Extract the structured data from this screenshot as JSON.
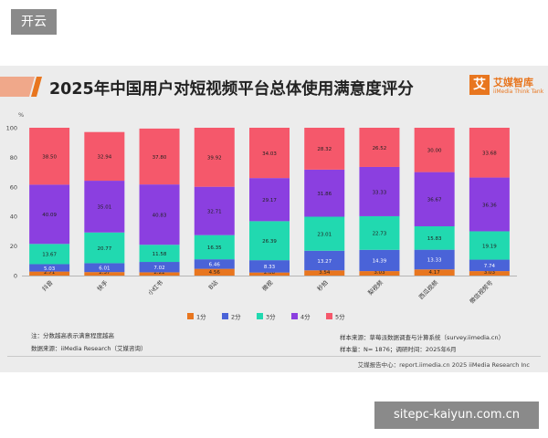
{
  "badge": "开云",
  "watermark": "sitepc-kaiyun.com.cn",
  "logo": {
    "mark": "艾",
    "name": "艾媒智库",
    "sub": "iiMedia Think Tank"
  },
  "notes": {
    "note1": "注：分数越高表示满意程度越高",
    "source": "数据来源：iiMedia Research（艾媒咨询）",
    "sample_source": "样本来源：草莓派数据调查与计算系统（survey.iimedia.cn）",
    "sample_size": "样本量：N= 1876；调研时间：2025年6月"
  },
  "footer": "艾媒报告中心：report.iimedia.cn   2025 iiMedia Research Inc",
  "colors": {
    "s1": "#e8761f",
    "s2": "#4a63d8",
    "s3": "#21d9b0",
    "s4": "#8b3fe0",
    "s5": "#f5586b"
  },
  "chart_data": {
    "type": "bar",
    "stacked": true,
    "title": "2025年中国用户对短视频平台总体使用满意度评分",
    "ylabel": "%",
    "ylim": [
      0,
      100
    ],
    "yticks": [
      0,
      20,
      40,
      60,
      80,
      100
    ],
    "categories": [
      "抖音",
      "快手",
      "小红书",
      "B站",
      "微视",
      "秒拍",
      "梨视频",
      "西瓜视频",
      "微信视频号"
    ],
    "series": [
      {
        "name": "1分",
        "values": [
          2.71,
          2.37,
          2.22,
          4.56,
          2.08,
          3.54,
          3.03,
          4.17,
          3.03
        ]
      },
      {
        "name": "2分",
        "values": [
          5.03,
          6.01,
          7.02,
          6.46,
          8.33,
          13.27,
          14.39,
          13.33,
          7.74
        ]
      },
      {
        "name": "3分",
        "values": [
          13.67,
          20.77,
          11.58,
          16.35,
          26.39,
          23.01,
          22.73,
          15.83,
          19.19
        ]
      },
      {
        "name": "4分",
        "values": [
          40.09,
          35.01,
          40.83,
          32.71,
          29.17,
          31.86,
          33.33,
          36.67,
          36.36
        ]
      },
      {
        "name": "5分",
        "values": [
          38.5,
          32.94,
          37.8,
          39.92,
          34.03,
          28.32,
          26.52,
          30.0,
          33.68
        ]
      }
    ],
    "legend": "bottom-center"
  }
}
